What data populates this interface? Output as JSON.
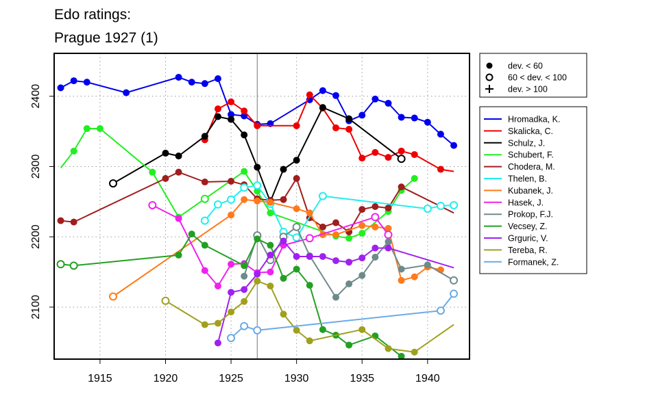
{
  "chart_data": {
    "type": "line",
    "title_lines": [
      "Edo ratings:",
      "Prague 1927 (1)"
    ],
    "xlim": [
      1911.5,
      1943.2
    ],
    "ylim": [
      2026,
      2461
    ],
    "x_ticks": [
      1915,
      1920,
      1925,
      1930,
      1935,
      1940
    ],
    "y_ticks": [
      2100,
      2200,
      2300,
      2400
    ],
    "grid": true,
    "event_marker_x": 1927,
    "marker_legend": [
      {
        "label": "dev. < 60",
        "symbol": "filled"
      },
      {
        "label": "60 < dev. < 100",
        "symbol": "open"
      },
      {
        "label": "dev. > 100",
        "symbol": "plus"
      }
    ],
    "series": [
      {
        "name": "Hromadka, K.",
        "color": "#0000ee",
        "points": [
          [
            1912,
            2412,
            "f"
          ],
          [
            1913,
            2422,
            "f"
          ],
          [
            1914,
            2420,
            "f"
          ],
          [
            1917,
            2405,
            "f"
          ],
          [
            1921,
            2427,
            "f"
          ],
          [
            1922,
            2420,
            "f"
          ],
          [
            1923,
            2418,
            "f"
          ],
          [
            1924,
            2425,
            "f"
          ],
          [
            1925,
            2374,
            "f"
          ],
          [
            1926,
            2372,
            "f"
          ],
          [
            1927,
            2360,
            "f"
          ],
          [
            1928,
            2361,
            "f"
          ],
          [
            1931,
            2395,
            "f"
          ],
          [
            1932,
            2408,
            "f"
          ],
          [
            1933,
            2401,
            "f"
          ],
          [
            1934,
            2365,
            "f"
          ],
          [
            1935,
            2373,
            "f"
          ],
          [
            1936,
            2396,
            "f"
          ],
          [
            1937,
            2390,
            "f"
          ],
          [
            1938,
            2370,
            "f"
          ],
          [
            1939,
            2369,
            "f"
          ],
          [
            1940,
            2363,
            "f"
          ],
          [
            1941,
            2346,
            "f"
          ],
          [
            1942,
            2330,
            "f"
          ]
        ]
      },
      {
        "name": "Skalicka, C.",
        "color": "#ee0000",
        "points": [
          [
            1923,
            2338,
            "f"
          ],
          [
            1924,
            2382,
            "f"
          ],
          [
            1925,
            2392,
            "f"
          ],
          [
            1926,
            2379,
            "f"
          ],
          [
            1927,
            2358,
            "f"
          ],
          [
            1930,
            2358,
            "f"
          ],
          [
            1931,
            2402,
            "f"
          ],
          [
            1932,
            2383,
            "f"
          ],
          [
            1933,
            2355,
            "f"
          ],
          [
            1934,
            2353,
            "f"
          ],
          [
            1935,
            2312,
            "f"
          ],
          [
            1936,
            2320,
            "f"
          ],
          [
            1937,
            2313,
            "f"
          ],
          [
            1938,
            2322,
            "f"
          ],
          [
            1939,
            2317,
            "f"
          ],
          [
            1941,
            2296,
            "f"
          ],
          [
            1942,
            2293,
            "n"
          ]
        ]
      },
      {
        "name": "Schulz, J.",
        "color": "#000000",
        "points": [
          [
            1916,
            2276,
            "o"
          ],
          [
            1920,
            2319,
            "f"
          ],
          [
            1921,
            2315,
            "f"
          ],
          [
            1923,
            2343,
            "f"
          ],
          [
            1924,
            2371,
            "f"
          ],
          [
            1925,
            2367,
            "f"
          ],
          [
            1926,
            2345,
            "f"
          ],
          [
            1927,
            2299,
            "f"
          ],
          [
            1928,
            2250,
            "f"
          ],
          [
            1929,
            2296,
            "f"
          ],
          [
            1930,
            2309,
            "f"
          ],
          [
            1932,
            2384,
            "f"
          ],
          [
            1934,
            2368,
            "f"
          ],
          [
            1938,
            2311,
            "o"
          ]
        ]
      },
      {
        "name": "Schubert, F.",
        "color": "#22ee22",
        "points": [
          [
            1912,
            2298,
            "n"
          ],
          [
            1913,
            2322,
            "f"
          ],
          [
            1914,
            2354,
            "f"
          ],
          [
            1915,
            2354,
            "f"
          ],
          [
            1919,
            2292,
            "f"
          ],
          [
            1921,
            2228,
            "f"
          ],
          [
            1923,
            2254,
            "o"
          ],
          [
            1926,
            2293,
            "f"
          ],
          [
            1927,
            2265,
            "f"
          ],
          [
            1928,
            2234,
            "f"
          ],
          [
            1933,
            2201,
            "f"
          ],
          [
            1934,
            2198,
            "f"
          ],
          [
            1935,
            2205,
            "f"
          ],
          [
            1937,
            2236,
            "f"
          ],
          [
            1938,
            2266,
            "f"
          ],
          [
            1939,
            2283,
            "f"
          ]
        ]
      },
      {
        "name": "Chodera, M.",
        "color": "#a01e1e",
        "points": [
          [
            1912,
            2223,
            "f"
          ],
          [
            1913,
            2221,
            "f"
          ],
          [
            1920,
            2283,
            "f"
          ],
          [
            1921,
            2292,
            "f"
          ],
          [
            1923,
            2278,
            "f"
          ],
          [
            1925,
            2279,
            "f"
          ],
          [
            1926,
            2274,
            "f"
          ],
          [
            1927,
            2254,
            "f"
          ],
          [
            1928,
            2252,
            "f"
          ],
          [
            1929,
            2253,
            "f"
          ],
          [
            1930,
            2283,
            "f"
          ],
          [
            1931,
            2227,
            "f"
          ],
          [
            1932,
            2214,
            "f"
          ],
          [
            1933,
            2220,
            "f"
          ],
          [
            1934,
            2207,
            "f"
          ],
          [
            1935,
            2239,
            "f"
          ],
          [
            1936,
            2243,
            "f"
          ],
          [
            1937,
            2241,
            "f"
          ],
          [
            1938,
            2271,
            "f"
          ],
          [
            1942,
            2234,
            "n"
          ]
        ]
      },
      {
        "name": "Thelen, B.",
        "color": "#22eeee",
        "points": [
          [
            1923,
            2223,
            "o"
          ],
          [
            1924,
            2246,
            "o"
          ],
          [
            1925,
            2253,
            "o"
          ],
          [
            1926,
            2270,
            "o"
          ],
          [
            1927,
            2273,
            "o"
          ],
          [
            1928,
            2247,
            "o"
          ],
          [
            1929,
            2207,
            "o"
          ],
          [
            1930,
            2199,
            "o"
          ],
          [
            1932,
            2258,
            "o"
          ],
          [
            1940,
            2240,
            "o"
          ],
          [
            1941,
            2244,
            "o"
          ],
          [
            1942,
            2245,
            "o"
          ]
        ]
      },
      {
        "name": "Kubanek, J.",
        "color": "#ff7a1a",
        "points": [
          [
            1916,
            2115,
            "o"
          ],
          [
            1925,
            2231,
            "f"
          ],
          [
            1926,
            2253,
            "f"
          ],
          [
            1927,
            2251,
            "f"
          ],
          [
            1928,
            2249,
            "f"
          ],
          [
            1930,
            2240,
            "f"
          ],
          [
            1931,
            2234,
            "f"
          ],
          [
            1932,
            2203,
            "f"
          ],
          [
            1933,
            2203,
            "f"
          ],
          [
            1935,
            2216,
            "f"
          ],
          [
            1936,
            2214,
            "f"
          ],
          [
            1937,
            2212,
            "f"
          ],
          [
            1938,
            2138,
            "f"
          ],
          [
            1939,
            2143,
            "f"
          ],
          [
            1940,
            2157,
            "f"
          ],
          [
            1941,
            2153,
            "f"
          ]
        ]
      },
      {
        "name": "Hasek, J.",
        "color": "#ee22ee",
        "points": [
          [
            1919,
            2245,
            "o"
          ],
          [
            1921,
            2226,
            "f"
          ],
          [
            1923,
            2152,
            "f"
          ],
          [
            1924,
            2130,
            "f"
          ],
          [
            1925,
            2161,
            "f"
          ],
          [
            1926,
            2162,
            "f"
          ],
          [
            1927,
            2149,
            "f"
          ],
          [
            1928,
            2150,
            "f"
          ],
          [
            1929,
            2188,
            "f"
          ],
          [
            1931,
            2198,
            "o"
          ],
          [
            1936,
            2228,
            "o"
          ],
          [
            1937,
            2203,
            "o"
          ]
        ]
      },
      {
        "name": "Prokop, F.J.",
        "color": "#6e8a8a",
        "points": [
          [
            1926,
            2144,
            "f"
          ],
          [
            1927,
            2202,
            "o"
          ],
          [
            1928,
            2167,
            "o"
          ],
          [
            1929,
            2200,
            "o"
          ],
          [
            1930,
            2214,
            "o"
          ],
          [
            1931,
            2173,
            "f"
          ],
          [
            1933,
            2114,
            "f"
          ],
          [
            1934,
            2133,
            "f"
          ],
          [
            1935,
            2145,
            "f"
          ],
          [
            1936,
            2171,
            "f"
          ],
          [
            1937,
            2193,
            "f"
          ],
          [
            1938,
            2154,
            "f"
          ],
          [
            1940,
            2160,
            "f"
          ],
          [
            1942,
            2138,
            "o"
          ]
        ]
      },
      {
        "name": "Vecsey, Z.",
        "color": "#22a022",
        "points": [
          [
            1912,
            2161,
            "o"
          ],
          [
            1913,
            2159,
            "o"
          ],
          [
            1921,
            2174,
            "f"
          ],
          [
            1922,
            2204,
            "f"
          ],
          [
            1923,
            2188,
            "f"
          ],
          [
            1926,
            2159,
            "f"
          ],
          [
            1927,
            2197,
            "f"
          ],
          [
            1928,
            2188,
            "f"
          ],
          [
            1929,
            2141,
            "f"
          ],
          [
            1930,
            2154,
            "f"
          ],
          [
            1931,
            2131,
            "f"
          ],
          [
            1932,
            2068,
            "f"
          ],
          [
            1933,
            2060,
            "f"
          ],
          [
            1934,
            2046,
            "f"
          ],
          [
            1936,
            2059,
            "f"
          ],
          [
            1938,
            2030,
            "f"
          ]
        ]
      },
      {
        "name": "Grguric, V.",
        "color": "#a020f0",
        "points": [
          [
            1924,
            2049,
            "f"
          ],
          [
            1925,
            2121,
            "f"
          ],
          [
            1926,
            2125,
            "f"
          ],
          [
            1927,
            2147,
            "f"
          ],
          [
            1928,
            2174,
            "f"
          ],
          [
            1929,
            2194,
            "f"
          ],
          [
            1930,
            2172,
            "f"
          ],
          [
            1931,
            2172,
            "f"
          ],
          [
            1932,
            2172,
            "f"
          ],
          [
            1933,
            2166,
            "f"
          ],
          [
            1934,
            2164,
            "f"
          ],
          [
            1935,
            2170,
            "f"
          ],
          [
            1936,
            2184,
            "f"
          ],
          [
            1937,
            2184,
            "f"
          ],
          [
            1942,
            2156,
            "n"
          ]
        ]
      },
      {
        "name": "Tereba, R.",
        "color": "#a0a01e",
        "points": [
          [
            1920,
            2109,
            "o"
          ],
          [
            1923,
            2075,
            "f"
          ],
          [
            1924,
            2077,
            "f"
          ],
          [
            1925,
            2093,
            "f"
          ],
          [
            1926,
            2108,
            "f"
          ],
          [
            1927,
            2137,
            "f"
          ],
          [
            1928,
            2130,
            "f"
          ],
          [
            1929,
            2090,
            "f"
          ],
          [
            1930,
            2067,
            "f"
          ],
          [
            1931,
            2052,
            "f"
          ],
          [
            1935,
            2068,
            "f"
          ],
          [
            1937,
            2041,
            "f"
          ],
          [
            1939,
            2036,
            "f"
          ],
          [
            1942,
            2075,
            "n"
          ]
        ]
      },
      {
        "name": "Formanek, Z.",
        "color": "#6aaae6",
        "points": [
          [
            1925,
            2056,
            "o"
          ],
          [
            1926,
            2073,
            "o"
          ],
          [
            1927,
            2067,
            "o"
          ],
          [
            1941,
            2095,
            "o"
          ],
          [
            1942,
            2119,
            "o"
          ]
        ]
      }
    ]
  }
}
